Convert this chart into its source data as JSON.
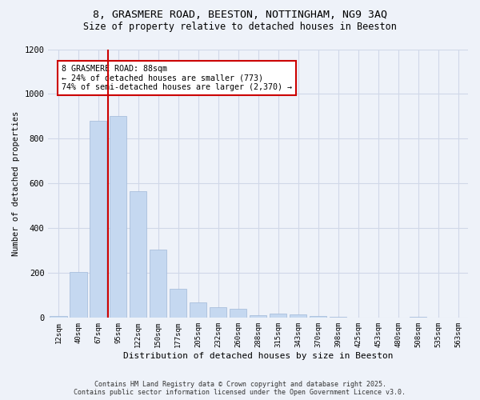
{
  "title_line1": "8, GRASMERE ROAD, BEESTON, NOTTINGHAM, NG9 3AQ",
  "title_line2": "Size of property relative to detached houses in Beeston",
  "xlabel": "Distribution of detached houses by size in Beeston",
  "ylabel": "Number of detached properties",
  "categories": [
    "12sqm",
    "40sqm",
    "67sqm",
    "95sqm",
    "122sqm",
    "150sqm",
    "177sqm",
    "205sqm",
    "232sqm",
    "260sqm",
    "288sqm",
    "315sqm",
    "343sqm",
    "370sqm",
    "398sqm",
    "425sqm",
    "453sqm",
    "480sqm",
    "508sqm",
    "535sqm",
    "563sqm"
  ],
  "values": [
    10,
    205,
    880,
    900,
    565,
    305,
    130,
    70,
    48,
    42,
    13,
    18,
    17,
    8,
    3,
    1,
    0,
    0,
    4,
    1,
    2
  ],
  "bar_color": "#c5d8f0",
  "bar_edgecolor": "#a0b8d8",
  "grid_color": "#d0d8e8",
  "vline_color": "#cc0000",
  "vline_x_index": 2.5,
  "annotation_text": "8 GRASMERE ROAD: 88sqm\n← 24% of detached houses are smaller (773)\n74% of semi-detached houses are larger (2,370) →",
  "ylim": [
    0,
    1200
  ],
  "yticks": [
    0,
    200,
    400,
    600,
    800,
    1000,
    1200
  ],
  "footer_line1": "Contains HM Land Registry data © Crown copyright and database right 2025.",
  "footer_line2": "Contains public sector information licensed under the Open Government Licence v3.0.",
  "bg_color": "#eef2f9"
}
